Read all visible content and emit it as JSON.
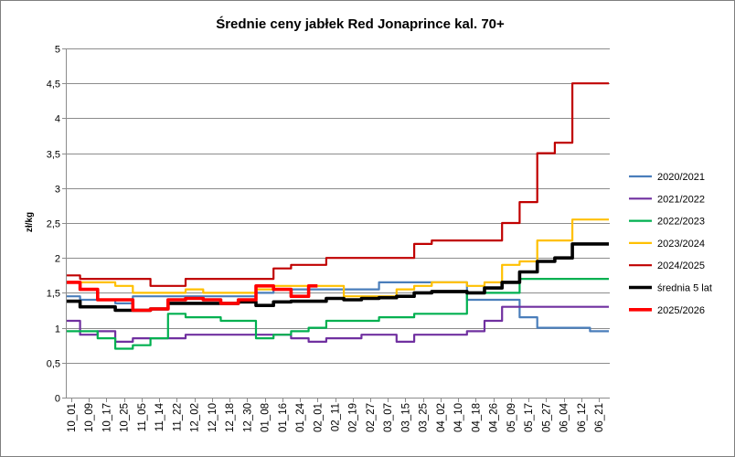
{
  "chart_data": {
    "type": "line",
    "title": "Średnie ceny jabłek Red Jonaprince kal. 70+",
    "ylabel": "zł/kg",
    "ylim": [
      0,
      5
    ],
    "yticks": [
      0,
      0.5,
      1,
      1.5,
      2,
      2.5,
      3,
      3.5,
      4,
      4.5,
      5
    ],
    "ytick_labels": [
      "0",
      "0,5",
      "1",
      "1,5",
      "2",
      "2,5",
      "3",
      "3,5",
      "4",
      "4,5",
      "5"
    ],
    "categories": [
      "10_01",
      "10_09",
      "10_17",
      "10_25",
      "11_05",
      "11_14",
      "11_22",
      "12_02",
      "12_10",
      "12_18",
      "12_30",
      "01_08",
      "01_16",
      "01_24",
      "02_01",
      "02_11",
      "02_19",
      "02_27",
      "03_07",
      "03_15",
      "03_25",
      "04_02",
      "04_10",
      "04_18",
      "04_26",
      "05_09",
      "05_17",
      "05_27",
      "06_04",
      "06_12",
      "06_21"
    ],
    "grid": "horizontal",
    "legend": "right",
    "series": [
      {
        "name": "2020/2021",
        "color": "#4A7EBB",
        "values": [
          1.45,
          1.4,
          1.4,
          1.35,
          1.45,
          1.45,
          1.45,
          1.45,
          1.45,
          1.45,
          1.45,
          1.5,
          1.55,
          1.55,
          1.55,
          1.55,
          1.55,
          1.55,
          1.65,
          1.65,
          1.65,
          1.65,
          1.65,
          1.4,
          1.4,
          1.4,
          1.15,
          1.0,
          1.0,
          1.0,
          0.95
        ]
      },
      {
        "name": "2021/2022",
        "color": "#7030A0",
        "values": [
          1.1,
          0.9,
          0.95,
          0.8,
          0.85,
          0.85,
          0.85,
          0.9,
          0.9,
          0.9,
          0.9,
          0.9,
          0.9,
          0.85,
          0.8,
          0.85,
          0.85,
          0.9,
          0.9,
          0.8,
          0.9,
          0.9,
          0.9,
          0.95,
          1.1,
          1.3,
          1.3,
          1.3,
          1.3,
          1.3,
          1.3
        ]
      },
      {
        "name": "2022/2023",
        "color": "#00B050",
        "values": [
          0.95,
          0.95,
          0.85,
          0.7,
          0.75,
          0.85,
          1.2,
          1.15,
          1.15,
          1.1,
          1.1,
          0.85,
          0.9,
          0.95,
          1.0,
          1.1,
          1.1,
          1.1,
          1.15,
          1.15,
          1.2,
          1.2,
          1.2,
          1.5,
          1.5,
          1.5,
          1.7,
          1.7,
          1.7,
          1.7,
          1.7
        ]
      },
      {
        "name": "2023/2024",
        "color": "#FFC000",
        "values": [
          1.65,
          1.65,
          1.65,
          1.6,
          1.5,
          1.5,
          1.5,
          1.55,
          1.5,
          1.5,
          1.5,
          1.55,
          1.6,
          1.6,
          1.6,
          1.6,
          1.45,
          1.45,
          1.45,
          1.55,
          1.6,
          1.65,
          1.65,
          1.6,
          1.65,
          1.9,
          1.95,
          2.25,
          2.25,
          2.55,
          2.55
        ]
      },
      {
        "name": "2024/2025",
        "color": "#C00000",
        "values": [
          1.75,
          1.7,
          1.7,
          1.7,
          1.7,
          1.6,
          1.6,
          1.7,
          1.7,
          1.7,
          1.7,
          1.7,
          1.85,
          1.9,
          1.9,
          2.0,
          2.0,
          2.0,
          2.0,
          2.0,
          2.2,
          2.25,
          2.25,
          2.25,
          2.25,
          2.5,
          2.8,
          3.5,
          3.65,
          4.5,
          4.5
        ]
      },
      {
        "name": "średnia 5 lat",
        "color": "#000000",
        "values": [
          1.38,
          1.3,
          1.3,
          1.25,
          1.25,
          1.27,
          1.35,
          1.35,
          1.35,
          1.35,
          1.37,
          1.32,
          1.37,
          1.38,
          1.38,
          1.42,
          1.4,
          1.42,
          1.43,
          1.45,
          1.5,
          1.52,
          1.52,
          1.5,
          1.57,
          1.65,
          1.8,
          1.95,
          2.0,
          2.2,
          2.2
        ]
      },
      {
        "name": "2025/2026",
        "color": "#FF0000",
        "values": [
          1.65,
          1.55,
          1.4,
          1.4,
          1.25,
          1.27,
          1.4,
          1.42,
          1.4,
          1.35,
          1.4,
          1.6,
          1.55,
          1.45,
          1.6,
          null,
          null,
          null,
          null,
          null,
          null,
          null,
          null,
          null,
          null,
          null,
          null,
          null,
          null,
          null,
          null
        ]
      }
    ]
  }
}
